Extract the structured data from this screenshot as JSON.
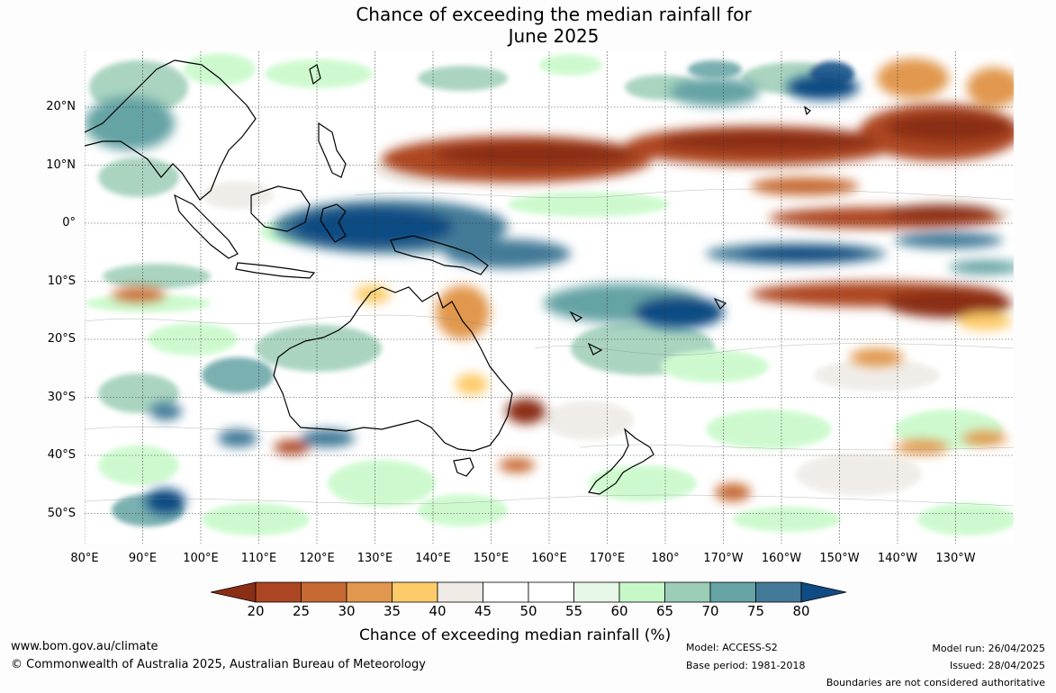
{
  "title_line1": "Chance of exceeding the median rainfall for",
  "title_line2": "June 2025",
  "map": {
    "lat_labels": [
      "20°N",
      "10°N",
      "0°",
      "10°S",
      "20°S",
      "30°S",
      "40°S",
      "50°S"
    ],
    "lon_labels": [
      "80°E",
      "90°E",
      "100°E",
      "110°E",
      "120°E",
      "130°E",
      "140°E",
      "150°E",
      "160°E",
      "170°E",
      "180°",
      "170°W",
      "160°W",
      "150°W",
      "140°W",
      "130°W"
    ],
    "gridlines": "dotted"
  },
  "legend": {
    "title": "Chance of exceeding median rainfall (%)",
    "ticks": [
      "20",
      "25",
      "30",
      "35",
      "40",
      "45",
      "50",
      "55",
      "60",
      "65",
      "70",
      "75",
      "80"
    ],
    "colors": [
      "#8b2e16",
      "#ad4723",
      "#c76932",
      "#e1974d",
      "#fdcb69",
      "#eeebe6",
      "#ffffff",
      "#ffffff",
      "#e7f7e7",
      "#c6f9c7",
      "#9ccdb6",
      "#65a3a4",
      "#437a98",
      "#114b83"
    ]
  },
  "footer": {
    "website": "www.bom.gov.au/climate",
    "copyright": "© Commonwealth of Australia 2025, Australian Bureau of Meteorology",
    "model": "Model: ACCESS-S2",
    "base_period": "Base period: 1981-2018",
    "model_run": "Model run: 26/04/2025",
    "issued": "Issued: 28/04/2025",
    "disclaimer": "Boundaries are not considered authoritative"
  }
}
